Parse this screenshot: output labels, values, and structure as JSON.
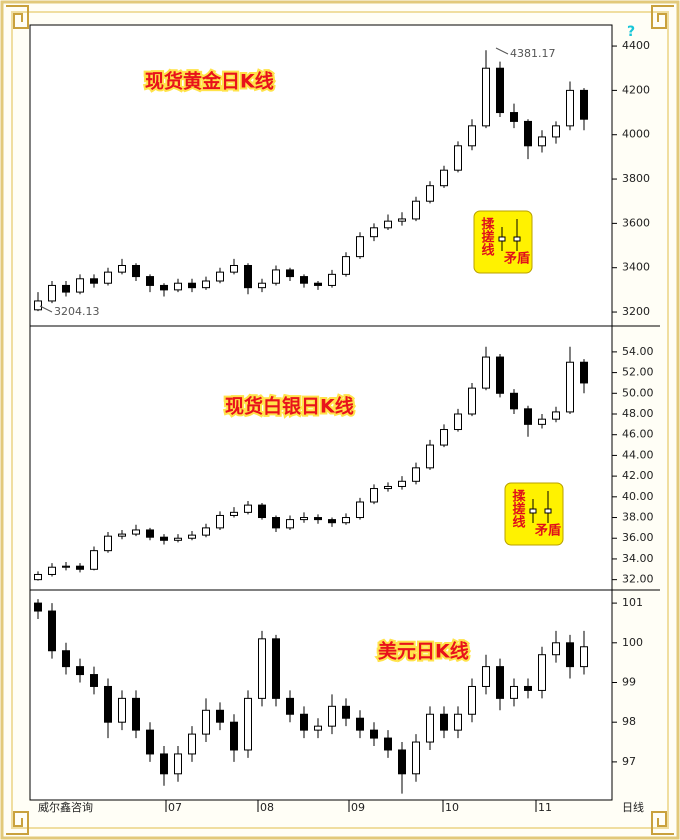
{
  "chart_data": [
    {
      "type": "candlestick",
      "title": "现货黄金日K线",
      "ylim": [
        3137,
        4495
      ],
      "yticks": [
        3200,
        3400,
        3600,
        3800,
        4000,
        4200,
        4400
      ],
      "annotations": [
        "4381.17",
        "3204.13"
      ],
      "legend_box": [
        "揉搓线",
        "矛盾"
      ],
      "ohlc": [
        [
          3210,
          3290,
          3204,
          3250
        ],
        [
          3250,
          3340,
          3240,
          3320
        ],
        [
          3320,
          3340,
          3270,
          3290
        ],
        [
          3290,
          3370,
          3280,
          3350
        ],
        [
          3350,
          3370,
          3310,
          3330
        ],
        [
          3330,
          3400,
          3320,
          3380
        ],
        [
          3380,
          3440,
          3370,
          3410
        ],
        [
          3410,
          3420,
          3340,
          3360
        ],
        [
          3360,
          3370,
          3290,
          3320
        ],
        [
          3320,
          3330,
          3270,
          3300
        ],
        [
          3300,
          3350,
          3290,
          3330
        ],
        [
          3330,
          3350,
          3290,
          3310
        ],
        [
          3310,
          3360,
          3300,
          3340
        ],
        [
          3340,
          3400,
          3330,
          3380
        ],
        [
          3380,
          3440,
          3370,
          3410
        ],
        [
          3410,
          3420,
          3280,
          3310
        ],
        [
          3310,
          3350,
          3290,
          3330
        ],
        [
          3330,
          3410,
          3320,
          3390
        ],
        [
          3390,
          3400,
          3340,
          3360
        ],
        [
          3360,
          3370,
          3310,
          3330
        ],
        [
          3330,
          3340,
          3300,
          3320
        ],
        [
          3320,
          3390,
          3310,
          3370
        ],
        [
          3370,
          3470,
          3360,
          3450
        ],
        [
          3450,
          3560,
          3440,
          3540
        ],
        [
          3540,
          3600,
          3520,
          3580
        ],
        [
          3580,
          3640,
          3570,
          3610
        ],
        [
          3610,
          3650,
          3590,
          3620
        ],
        [
          3620,
          3720,
          3610,
          3700
        ],
        [
          3700,
          3790,
          3690,
          3770
        ],
        [
          3770,
          3860,
          3760,
          3840
        ],
        [
          3840,
          3970,
          3830,
          3950
        ],
        [
          3950,
          4070,
          3930,
          4040
        ],
        [
          4040,
          4381.17,
          4030,
          4300
        ],
        [
          4300,
          4330,
          4080,
          4100
        ],
        [
          4100,
          4140,
          4030,
          4060
        ],
        [
          4060,
          4070,
          3890,
          3950
        ],
        [
          3950,
          4020,
          3920,
          3990
        ],
        [
          3990,
          4060,
          3960,
          4040
        ],
        [
          4040,
          4240,
          4020,
          4200
        ],
        [
          4200,
          4210,
          4020,
          4070
        ]
      ]
    },
    {
      "type": "candlestick",
      "title": "现货白银日K线",
      "ylim": [
        31.0,
        56.5
      ],
      "yticks": [
        {
          "value": 32,
          "label": "32.00"
        },
        {
          "value": 34,
          "label": "34.00"
        },
        {
          "value": 36,
          "label": "36.00"
        },
        {
          "value": 38,
          "label": "38.00"
        },
        {
          "value": 40,
          "label": "40.00"
        },
        {
          "value": 42,
          "label": "42.00"
        },
        {
          "value": 44,
          "label": "44.00"
        },
        {
          "value": 46,
          "label": "46.00"
        },
        {
          "value": 48,
          "label": "48.00"
        },
        {
          "value": 50,
          "label": "50.00"
        },
        {
          "value": 52,
          "label": "52.00"
        },
        {
          "value": 54,
          "label": "54.00"
        }
      ],
      "legend_box": [
        "揉搓线",
        "矛盾"
      ],
      "ohlc": [
        [
          32.0,
          32.8,
          31.9,
          32.5
        ],
        [
          32.5,
          33.6,
          32.3,
          33.2
        ],
        [
          33.2,
          33.7,
          32.9,
          33.3
        ],
        [
          33.3,
          33.6,
          32.7,
          33.0
        ],
        [
          33.0,
          35.2,
          32.9,
          34.8
        ],
        [
          34.8,
          36.6,
          34.6,
          36.2
        ],
        [
          36.2,
          36.8,
          35.9,
          36.4
        ],
        [
          36.4,
          37.3,
          36.2,
          36.8
        ],
        [
          36.8,
          37.0,
          35.8,
          36.1
        ],
        [
          36.1,
          36.4,
          35.4,
          35.8
        ],
        [
          35.8,
          36.4,
          35.6,
          36.0
        ],
        [
          36.0,
          36.7,
          35.8,
          36.3
        ],
        [
          36.3,
          37.4,
          36.1,
          37.0
        ],
        [
          37.0,
          38.6,
          36.8,
          38.2
        ],
        [
          38.2,
          39.0,
          38.0,
          38.5
        ],
        [
          38.5,
          39.6,
          38.3,
          39.2
        ],
        [
          39.2,
          39.4,
          37.8,
          38.0
        ],
        [
          38.0,
          38.2,
          36.6,
          37.0
        ],
        [
          37.0,
          38.2,
          36.8,
          37.8
        ],
        [
          37.8,
          38.5,
          37.5,
          38.0
        ],
        [
          38.0,
          38.3,
          37.4,
          37.8
        ],
        [
          37.8,
          38.0,
          37.1,
          37.5
        ],
        [
          37.5,
          38.4,
          37.3,
          38.0
        ],
        [
          38.0,
          39.9,
          37.8,
          39.5
        ],
        [
          39.5,
          41.2,
          39.3,
          40.8
        ],
        [
          40.8,
          41.4,
          40.5,
          41.0
        ],
        [
          41.0,
          42.0,
          40.7,
          41.5
        ],
        [
          41.5,
          43.3,
          41.2,
          42.8
        ],
        [
          42.8,
          45.5,
          42.6,
          45.0
        ],
        [
          45.0,
          47.0,
          44.8,
          46.5
        ],
        [
          46.5,
          48.5,
          46.3,
          48.0
        ],
        [
          48.0,
          51.0,
          47.8,
          50.5
        ],
        [
          50.5,
          54.5,
          50.3,
          53.5
        ],
        [
          53.5,
          53.8,
          49.6,
          50.0
        ],
        [
          50.0,
          50.4,
          48.0,
          48.5
        ],
        [
          48.5,
          48.8,
          45.8,
          47.0
        ],
        [
          47.0,
          48.0,
          46.6,
          47.5
        ],
        [
          47.5,
          48.7,
          47.2,
          48.2
        ],
        [
          48.2,
          54.5,
          48.0,
          53.0
        ],
        [
          53.0,
          53.3,
          50.0,
          51.0
        ]
      ]
    },
    {
      "type": "candlestick",
      "title": "美元日K线",
      "ylim": [
        96.04,
        101.33
      ],
      "yticks": [
        97,
        98,
        99,
        100,
        101
      ],
      "ohlc": [
        [
          101.0,
          101.1,
          100.6,
          100.8
        ],
        [
          100.8,
          101.0,
          99.6,
          99.8
        ],
        [
          99.8,
          100.0,
          99.2,
          99.4
        ],
        [
          99.4,
          99.6,
          99.0,
          99.2
        ],
        [
          99.2,
          99.4,
          98.7,
          98.9
        ],
        [
          98.9,
          99.1,
          97.6,
          98.0
        ],
        [
          98.0,
          98.8,
          97.8,
          98.6
        ],
        [
          98.6,
          98.8,
          97.6,
          97.8
        ],
        [
          97.8,
          98.0,
          97.0,
          97.2
        ],
        [
          97.2,
          97.4,
          96.4,
          96.7
        ],
        [
          96.7,
          97.4,
          96.5,
          97.2
        ],
        [
          97.2,
          97.9,
          97.0,
          97.7
        ],
        [
          97.7,
          98.6,
          97.5,
          98.3
        ],
        [
          98.3,
          98.5,
          97.8,
          98.0
        ],
        [
          98.0,
          98.2,
          97.0,
          97.3
        ],
        [
          97.3,
          98.8,
          97.1,
          98.6
        ],
        [
          98.6,
          100.3,
          98.4,
          100.1
        ],
        [
          100.1,
          100.2,
          98.4,
          98.6
        ],
        [
          98.6,
          98.8,
          98.0,
          98.2
        ],
        [
          98.2,
          98.4,
          97.6,
          97.8
        ],
        [
          97.8,
          98.1,
          97.6,
          97.9
        ],
        [
          97.9,
          98.7,
          97.7,
          98.4
        ],
        [
          98.4,
          98.6,
          97.9,
          98.1
        ],
        [
          98.1,
          98.3,
          97.6,
          97.8
        ],
        [
          97.8,
          98.0,
          97.4,
          97.6
        ],
        [
          97.6,
          97.8,
          97.1,
          97.3
        ],
        [
          97.3,
          97.5,
          96.2,
          96.7
        ],
        [
          96.7,
          97.7,
          96.5,
          97.5
        ],
        [
          97.5,
          98.4,
          97.3,
          98.2
        ],
        [
          98.2,
          98.4,
          97.6,
          97.8
        ],
        [
          97.8,
          98.4,
          97.6,
          98.2
        ],
        [
          98.2,
          99.1,
          98.0,
          98.9
        ],
        [
          98.9,
          99.7,
          98.7,
          99.4
        ],
        [
          99.4,
          99.6,
          98.3,
          98.6
        ],
        [
          98.6,
          99.1,
          98.4,
          98.9
        ],
        [
          98.9,
          99.1,
          98.6,
          98.8
        ],
        [
          98.8,
          99.9,
          98.6,
          99.7
        ],
        [
          99.7,
          100.3,
          99.5,
          100.0
        ],
        [
          100.0,
          100.2,
          99.1,
          99.4
        ],
        [
          99.4,
          100.3,
          99.2,
          99.9
        ]
      ]
    }
  ],
  "x_axis": {
    "labels": [
      "07",
      "08",
      "09",
      "10",
      "11"
    ],
    "unit_label": "日线"
  },
  "source": "威尔鑫咨询"
}
